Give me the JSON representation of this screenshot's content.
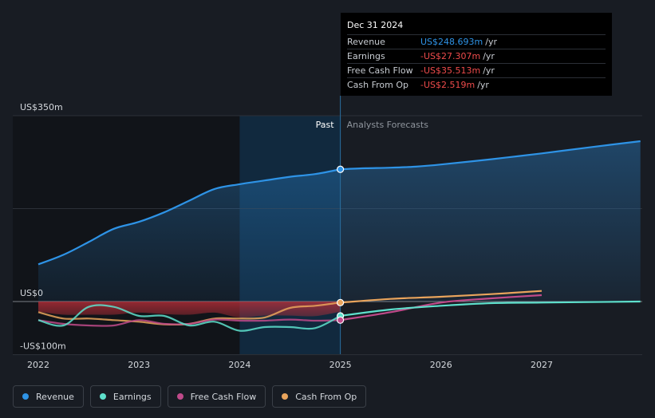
{
  "tooltip": {
    "date": "Dec 31 2024",
    "rows": [
      {
        "label": "Revenue",
        "value": "US$248.693m",
        "unit": "/yr",
        "color": "#2e93e6"
      },
      {
        "label": "Earnings",
        "value": "-US$27.307m",
        "unit": "/yr",
        "color": "#ee4b4b"
      },
      {
        "label": "Free Cash Flow",
        "value": "-US$35.513m",
        "unit": "/yr",
        "color": "#ee4b4b"
      },
      {
        "label": "Cash From Op",
        "value": "-US$2.519m",
        "unit": "/yr",
        "color": "#ee4b4b"
      }
    ]
  },
  "legend": [
    {
      "label": "Revenue",
      "color": "#2e93e6"
    },
    {
      "label": "Earnings",
      "color": "#5ee0cc"
    },
    {
      "label": "Free Cash Flow",
      "color": "#c04a8a"
    },
    {
      "label": "Cash From Op",
      "color": "#e9a45c"
    }
  ],
  "chart_data": {
    "type": "line",
    "y_tick_labels": [
      "US$350m",
      "US$0",
      "-US$100m"
    ],
    "y_ticks": [
      350,
      0,
      -100
    ],
    "ylim": [
      -100,
      350
    ],
    "xlim": [
      2021.9,
      2027.98
    ],
    "x_ticks": [
      2022,
      2023,
      2024,
      2025,
      2026,
      2027
    ],
    "x_tick_labels": [
      "2022",
      "2023",
      "2024",
      "2025",
      "2026",
      "2027"
    ],
    "past_label": "Past",
    "forecast_label": "Analysts Forecasts",
    "divider_x": 2025.0,
    "highlight_start": 2024.0,
    "series": [
      {
        "name": "Revenue",
        "color": "#2e93e6",
        "x": [
          2022.0,
          2022.25,
          2022.5,
          2022.75,
          2023.0,
          2023.25,
          2023.5,
          2023.75,
          2024.0,
          2024.25,
          2024.5,
          2024.75,
          2025.0,
          2025.25,
          2025.5,
          2025.75,
          2026.0,
          2026.5,
          2027.0,
          2027.5,
          2027.98
        ],
        "y": [
          70,
          88,
          112,
          137,
          150,
          168,
          190,
          212,
          221,
          228,
          235,
          240,
          249,
          251,
          252,
          254,
          258,
          268,
          279,
          291,
          302
        ]
      },
      {
        "name": "Earnings",
        "color": "#5ee0cc",
        "x": [
          2022.0,
          2022.25,
          2022.5,
          2022.75,
          2023.0,
          2023.25,
          2023.5,
          2023.75,
          2024.0,
          2024.25,
          2024.5,
          2024.75,
          2025.0,
          2025.5,
          2026.0,
          2026.5,
          2027.0,
          2027.98
        ],
        "y": [
          -35,
          -45,
          -10,
          -10,
          -27,
          -27,
          -45,
          -38,
          -55,
          -48,
          -48,
          -50,
          -27,
          -15,
          -8,
          -3,
          -2,
          0
        ]
      },
      {
        "name": "Free Cash Flow",
        "color": "#c04a8a",
        "x": [
          2022.0,
          2022.25,
          2022.5,
          2022.75,
          2023.0,
          2023.25,
          2023.5,
          2023.75,
          2024.0,
          2024.25,
          2024.5,
          2024.75,
          2025.0,
          2025.5,
          2026.0,
          2026.5,
          2027.0
        ],
        "y": [
          -35,
          -42,
          -45,
          -45,
          -35,
          -42,
          -42,
          -34,
          -36,
          -36,
          -34,
          -36,
          -35,
          -20,
          -2,
          6,
          12
        ]
      },
      {
        "name": "Cash From Op",
        "color": "#e9a45c",
        "x": [
          2022.0,
          2022.25,
          2022.5,
          2022.75,
          2023.0,
          2023.25,
          2023.5,
          2023.75,
          2024.0,
          2024.25,
          2024.5,
          2024.75,
          2025.0,
          2025.5,
          2026.0,
          2026.5,
          2027.0
        ],
        "y": [
          -20,
          -32,
          -32,
          -35,
          -38,
          -43,
          -42,
          -32,
          -32,
          -30,
          -12,
          -8,
          -2,
          5,
          9,
          14,
          20
        ]
      }
    ],
    "markers": [
      {
        "series": "Revenue",
        "x": 2025.0,
        "y": 249
      },
      {
        "series": "Earnings",
        "x": 2025.0,
        "y": -27
      },
      {
        "series": "Free Cash Flow",
        "x": 2025.0,
        "y": -35
      },
      {
        "series": "Cash From Op",
        "x": 2025.0,
        "y": -2
      }
    ]
  }
}
